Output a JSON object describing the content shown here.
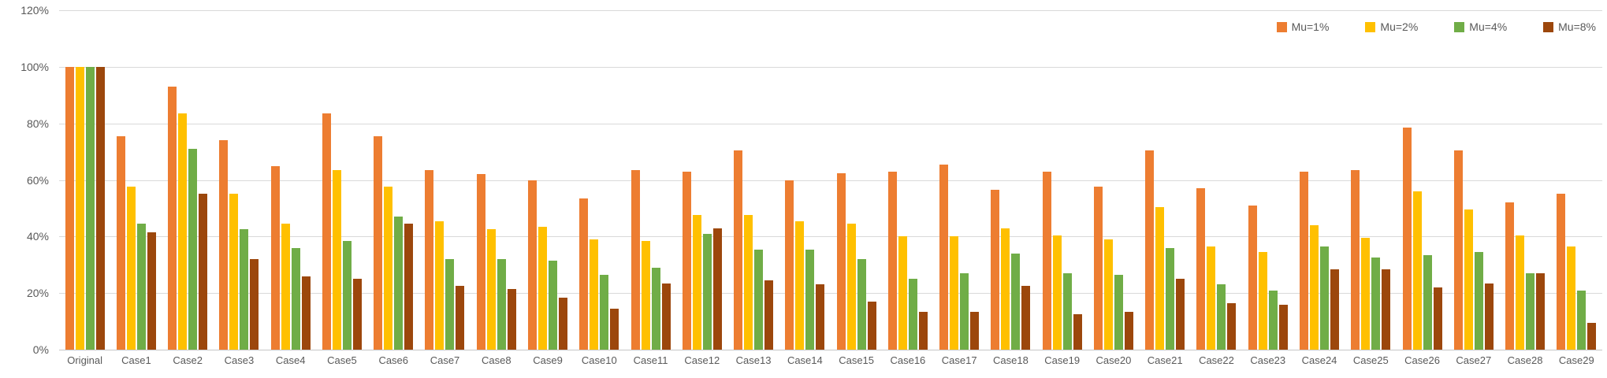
{
  "chart_data": {
    "type": "bar",
    "title": "",
    "xlabel": "",
    "ylabel": "",
    "ylim": [
      0,
      120
    ],
    "ytick_step": 20,
    "ytick_labels": [
      "0%",
      "20%",
      "40%",
      "60%",
      "80%",
      "100%",
      "120%"
    ],
    "grid": true,
    "legend_position": "top-right",
    "categories": [
      "Original",
      "Case1",
      "Case2",
      "Case3",
      "Case4",
      "Case5",
      "Case6",
      "Case7",
      "Case8",
      "Case9",
      "Case10",
      "Case11",
      "Case12",
      "Case13",
      "Case14",
      "Case15",
      "Case16",
      "Case17",
      "Case18",
      "Case19",
      "Case20",
      "Case21",
      "Case22",
      "Case23",
      "Case24",
      "Case25",
      "Case26",
      "Case27",
      "Case28",
      "Case29"
    ],
    "series": [
      {
        "name": "Mu=1%",
        "color": "#ED7D31",
        "values": [
          100,
          75.5,
          93,
          74,
          65,
          83.5,
          75.5,
          63.5,
          62,
          60,
          53.5,
          63.5,
          63,
          70.5,
          60,
          62.5,
          63,
          65.5,
          56.5,
          63,
          57.5,
          70.5,
          57,
          51,
          63,
          63.5,
          78.5,
          70.5,
          52,
          55
        ]
      },
      {
        "name": "Mu=2%",
        "color": "#FFC000",
        "values": [
          100,
          57.5,
          83.5,
          55,
          44.5,
          63.5,
          57.5,
          45.5,
          42.5,
          43.5,
          39,
          38.5,
          47.5,
          47.5,
          45.5,
          44.5,
          40,
          40,
          43,
          40.5,
          39,
          50.5,
          36.5,
          34.5,
          44,
          39.5,
          56,
          49.5,
          40.5,
          36.5
        ]
      },
      {
        "name": "Mu=4%",
        "color": "#70AD47",
        "values": [
          100,
          44.5,
          71,
          42.5,
          36,
          38.5,
          47,
          32,
          32,
          31.5,
          26.5,
          29,
          41,
          35.5,
          35.5,
          32,
          25,
          27,
          34,
          27,
          26.5,
          36,
          23,
          21,
          36.5,
          32.5,
          33.5,
          34.5,
          27,
          21
        ]
      },
      {
        "name": "Mu=8%",
        "color": "#9C470C",
        "values": [
          100,
          41.5,
          55,
          32,
          26,
          25,
          44.5,
          22.5,
          21.5,
          18.5,
          14.5,
          23.5,
          43,
          24.5,
          23,
          17,
          13.5,
          13.5,
          22.5,
          12.5,
          13.5,
          25,
          16.5,
          16,
          28.5,
          28.5,
          22,
          23.5,
          27,
          9.5
        ]
      }
    ],
    "colors": {
      "text": "#595959",
      "gridline": "#D9D9D9",
      "axis_line": "#C6C6C6",
      "background": "#FFFFFF"
    }
  }
}
